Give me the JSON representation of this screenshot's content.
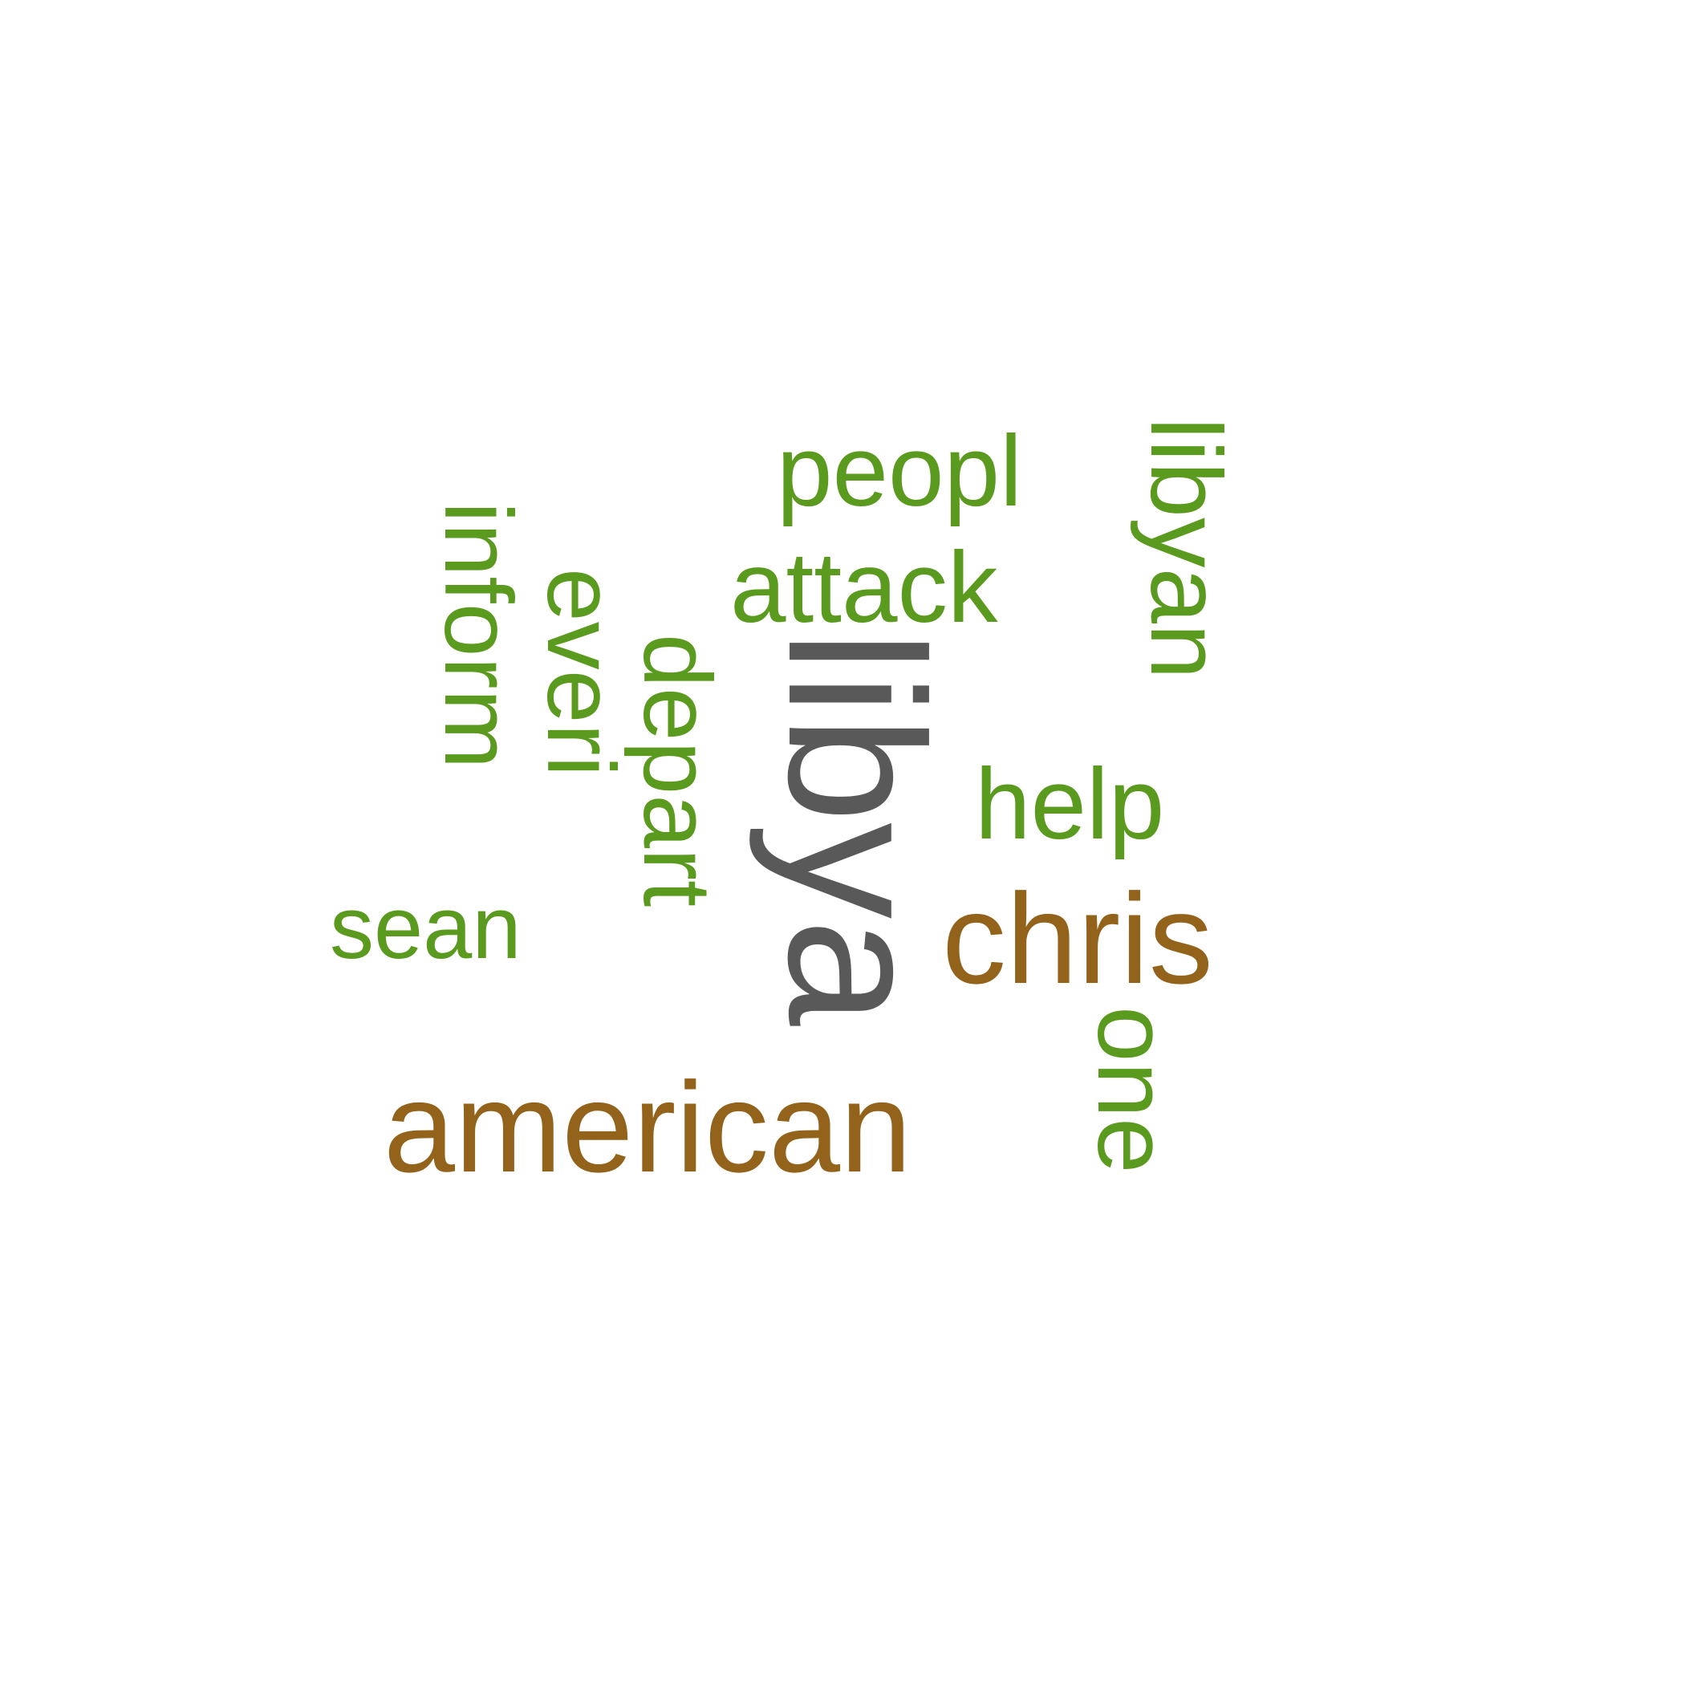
{
  "words": {
    "libya": "libya",
    "american": "american",
    "chris": "chris",
    "libyan": "libyan",
    "attack": "attack",
    "peopl": "peopl",
    "inform": "inform",
    "everi": "everi",
    "depart": "depart",
    "help": "help",
    "sean": "sean",
    "one": "one"
  },
  "colors": {
    "green": "#5a9a1e",
    "brown": "#93631c",
    "grey": "#595959"
  }
}
